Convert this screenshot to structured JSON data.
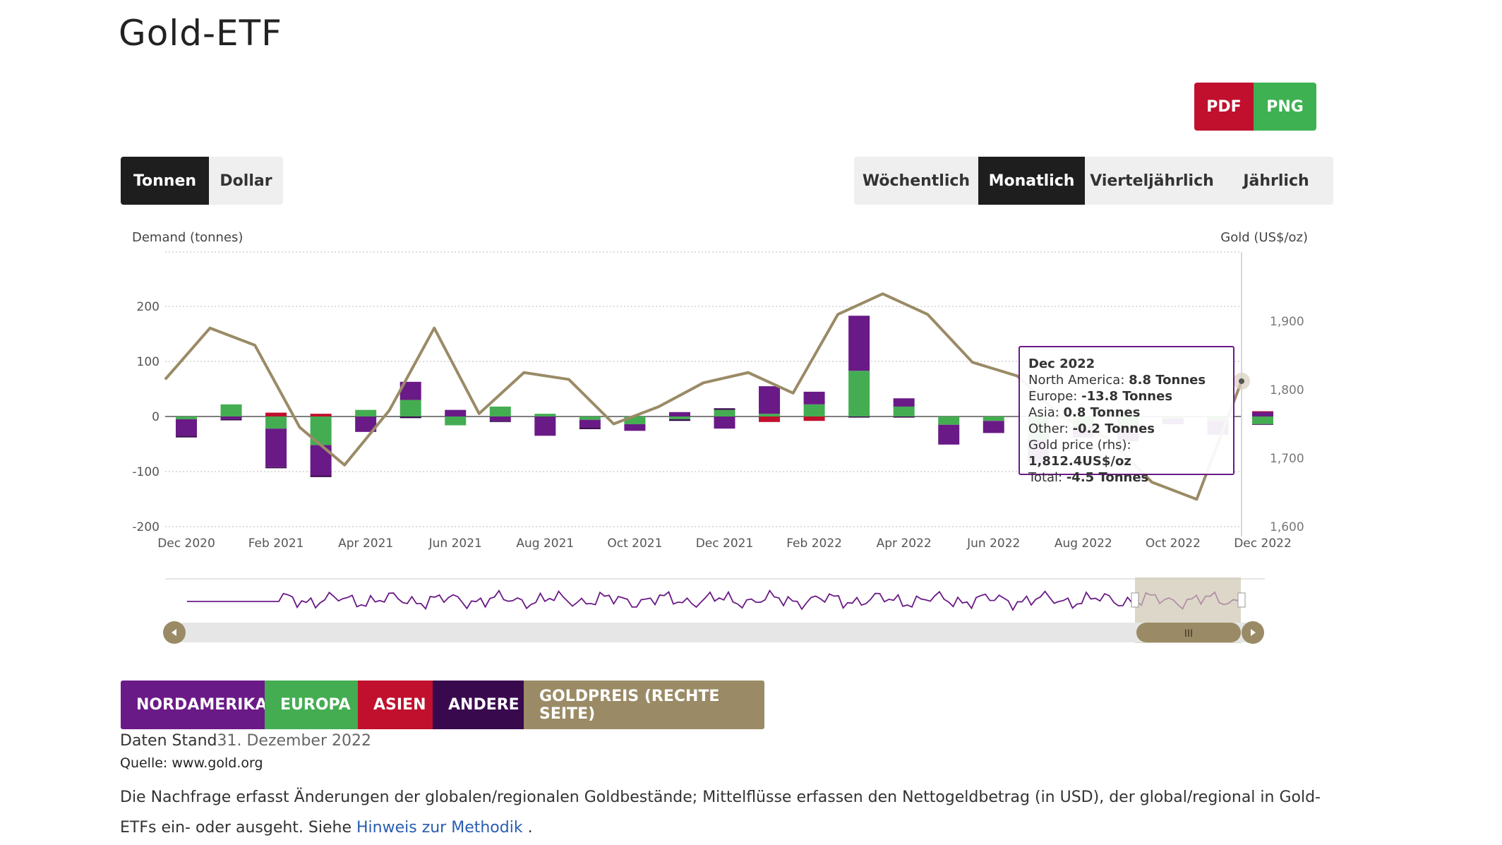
{
  "page": {
    "title": "Gold-ETF",
    "export": {
      "pdf": "PDF",
      "png": "PNG"
    },
    "unit_toggle": {
      "tons": "Tonnen",
      "dollar": "Dollar",
      "active": "tons"
    },
    "period_toggle": {
      "weekly": "Wöchentlich",
      "monthly": "Monatlich",
      "quarterly": "Vierteljährlich",
      "yearly": "Jährlich",
      "active": "monthly"
    },
    "legend": {
      "na": "NORDAMERIKA",
      "eu": "EUROPA",
      "as": "ASIEN",
      "ot": "ANDERE",
      "gp": "GOLDPREIS (RECHTE SEITE)"
    },
    "stand_label": "Daten Stand",
    "stand_date": "31. Dezember 2022",
    "source": "Quelle: www.gold.org",
    "desc_text": "Die Nachfrage erfasst Änderungen der globalen/regionalen Goldbestände; Mittelflüsse erfassen den Nettogeldbetrag (in USD), der global/regional in Gold-ETFs ein- oder ausgeht. Siehe ",
    "desc_link": "Hinweis zur Methodik",
    "desc_end": " ."
  },
  "colors": {
    "north_america": "#6a1a86",
    "europe": "#44ad52",
    "asia": "#c0102d",
    "other": "#39094e",
    "gold_price": "#9a8b66"
  },
  "tooltip": {
    "header": "Dec 2022",
    "lines": [
      {
        "label": "North America: ",
        "value": "8.8 Tonnes"
      },
      {
        "label": "Europe: ",
        "value": "-13.8 Tonnes"
      },
      {
        "label": "Asia: ",
        "value": "0.8 Tonnes"
      },
      {
        "label": "Other: ",
        "value": "-0.2 Tonnes"
      },
      {
        "label": "Gold price (rhs): ",
        "value": "1,812.4US$/oz"
      },
      {
        "label": "Total: ",
        "value": "-4.5 Tonnes"
      }
    ]
  },
  "chart_data": {
    "type": "bar",
    "stacked": true,
    "ylabel": "Demand (tonnes)",
    "y2label": "Gold (US$/oz)",
    "ylim": [
      -200,
      200
    ],
    "y2lim": [
      1600,
      1900
    ],
    "yticks": [
      "-200",
      "-100",
      "0",
      "100",
      "200"
    ],
    "y2ticks": [
      "1,600",
      "1,700",
      "1,800",
      "1,900"
    ],
    "xticks": [
      "Dec 2020",
      "Feb 2021",
      "Apr 2021",
      "Jun 2021",
      "Aug 2021",
      "Oct 2021",
      "Dec 2021",
      "Feb 2022",
      "Apr 2022",
      "Jun 2022",
      "Aug 2022",
      "Oct 2022",
      "Dec 2022"
    ],
    "categories": [
      "Dec 2020",
      "Jan 2021",
      "Feb 2021",
      "Mar 2021",
      "Apr 2021",
      "May 2021",
      "Jun 2021",
      "Jul 2021",
      "Aug 2021",
      "Sep 2021",
      "Oct 2021",
      "Nov 2021",
      "Dec 2021",
      "Jan 2022",
      "Feb 2022",
      "Mar 2022",
      "Apr 2022",
      "May 2022",
      "Jun 2022",
      "Jul 2022",
      "Aug 2022",
      "Sep 2022",
      "Oct 2022",
      "Nov 2022",
      "Dec 2022"
    ],
    "series": [
      {
        "name": "North America",
        "values": [
          -30,
          -5,
          -70,
          -55,
          -28,
          33,
          12,
          -8,
          -35,
          -14,
          -12,
          8,
          -22,
          50,
          23,
          100,
          15,
          -36,
          -22,
          -40,
          -20,
          -25,
          -10,
          -25,
          8.8
        ]
      },
      {
        "name": "Europe",
        "values": [
          -5,
          22,
          -22,
          -52,
          12,
          30,
          -16,
          18,
          5,
          -6,
          -14,
          -5,
          12,
          5,
          22,
          83,
          18,
          -15,
          -8,
          -42,
          -18,
          -20,
          -4,
          -8,
          -13.8
        ]
      },
      {
        "name": "Asia",
        "values": [
          0,
          0,
          7,
          5,
          0,
          0,
          0,
          0,
          0,
          0,
          0,
          0,
          0,
          -10,
          -8,
          0,
          0,
          0,
          0,
          0,
          0,
          0,
          0,
          0,
          0.8
        ]
      },
      {
        "name": "Other",
        "values": [
          -3,
          -2,
          -2,
          -3,
          0,
          -3,
          0,
          -2,
          0,
          -3,
          0,
          -3,
          3,
          0,
          0,
          -2,
          -2,
          0,
          0,
          0,
          0,
          0,
          0,
          0,
          -0.2
        ]
      },
      {
        "name": "Gold price (rhs)",
        "axis": "right",
        "values": [
          1815,
          1890,
          1865,
          1745,
          1690,
          1770,
          1890,
          1765,
          1825,
          1815,
          1750,
          1775,
          1810,
          1825,
          1795,
          1910,
          1940,
          1910,
          1840,
          1820,
          1760,
          1730,
          1665,
          1640,
          1812.4
        ]
      }
    ],
    "navigator": {
      "range_start": "Oct 2022",
      "range_end": "Dec 2022",
      "thumb_label": "III"
    },
    "grid": true,
    "legend": "bottom"
  }
}
